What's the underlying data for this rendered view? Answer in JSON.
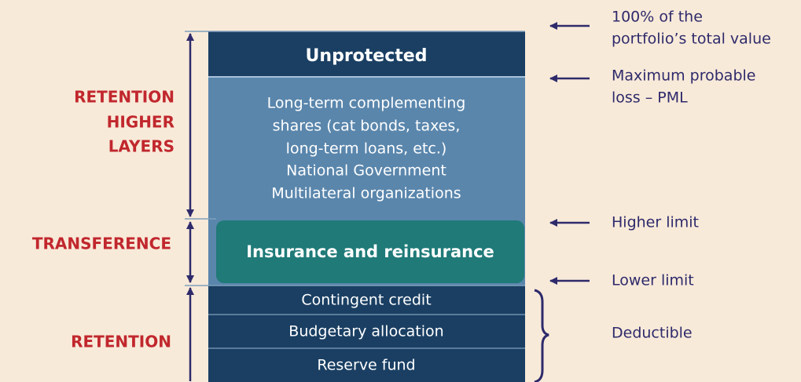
{
  "left_labels": [
    [
      "RETENTION",
      "HIGHER",
      "LAYERS"
    ],
    [
      "TRANSFERENCE"
    ],
    [
      "RETENTION"
    ]
  ],
  "layers": {
    "top": "Unprotected",
    "middle": [
      "Long-term complementing",
      "shares (cat bonds, taxes,",
      "long-term loans, etc.)",
      "National Government",
      "Multilateral organizations"
    ],
    "transfer": "Insurance and reinsurance",
    "bottom": [
      "Contingent credit",
      "Budgetary allocation",
      "Reserve fund"
    ]
  },
  "right_labels": [
    [
      "100% of the",
      "portfolio’s total value"
    ],
    [
      "Maximum probable",
      "loss – PML"
    ],
    [
      "Higher limit"
    ],
    [
      "Lower limit"
    ],
    [
      "Deductible"
    ]
  ]
}
